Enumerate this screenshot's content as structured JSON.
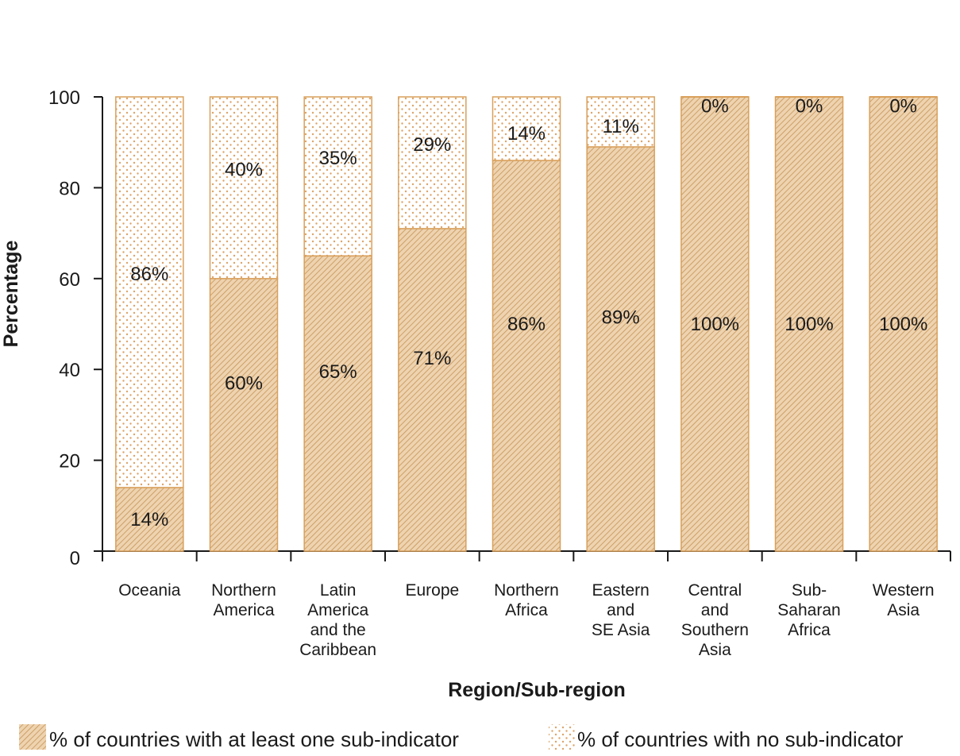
{
  "chart_data": {
    "type": "bar",
    "stacked": true,
    "categories": [
      [
        "Oceania"
      ],
      [
        "Northern",
        "America"
      ],
      [
        "Latin",
        "America",
        "and the",
        "Caribbean"
      ],
      [
        "Europe"
      ],
      [
        "Northern",
        "Africa"
      ],
      [
        "Eastern",
        "and",
        "SE Asia"
      ],
      [
        "Central",
        "and",
        "Southern",
        "Asia"
      ],
      [
        "Sub-",
        "Saharan",
        "Africa"
      ],
      [
        "Western",
        "Asia"
      ]
    ],
    "series": [
      {
        "name": "% of countries with at least one sub-indicator",
        "values": [
          14,
          60,
          65,
          71,
          86,
          89,
          100,
          100,
          100
        ],
        "labels": [
          "14%",
          "60%",
          "65%",
          "71%",
          "86%",
          "89%",
          "100%",
          "100%",
          "100%"
        ],
        "pattern": "hatch"
      },
      {
        "name": "% of countries with no sub-indicator",
        "values": [
          86,
          40,
          35,
          29,
          14,
          11,
          0,
          0,
          0
        ],
        "labels": [
          "86%",
          "40%",
          "35%",
          "29%",
          "14%",
          "11%",
          "0%",
          "0%",
          "0%"
        ],
        "pattern": "dots"
      }
    ],
    "xlabel": "Region/Sub-region",
    "ylabel": "Percentage",
    "ylim": [
      0,
      100
    ],
    "yticks": [
      0,
      20,
      40,
      60,
      80,
      100
    ],
    "grid": false,
    "legend_position": "bottom",
    "colors": {
      "accent": "#d9a05b",
      "hatch_fill": "#e9c9a0",
      "dots_fill": "#fdf8f1",
      "axis": "#1a1a1a"
    }
  }
}
